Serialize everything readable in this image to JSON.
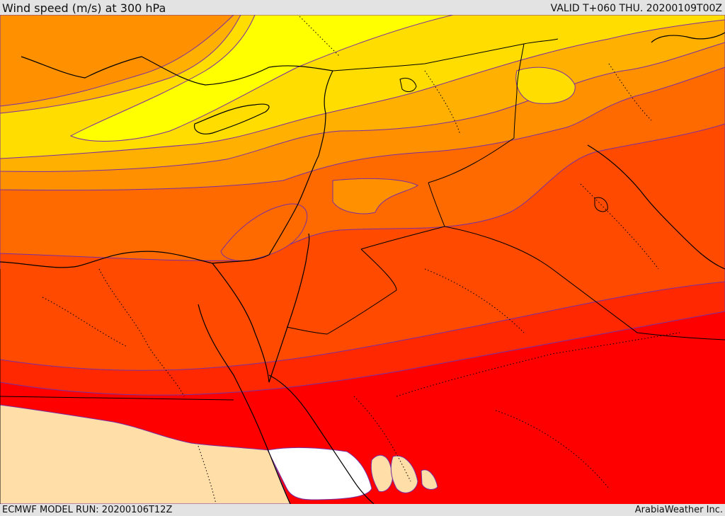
{
  "header": {
    "title": "Wind speed (m/s) at 300 hPa",
    "valid_time": "VALID T+060 THU. 20200109T00Z"
  },
  "footer": {
    "model_run": "ECMWF MODEL RUN: 20200106T12Z",
    "credit": "ArabiaWeather Inc."
  },
  "map": {
    "field": "wind speed at 300 hPa",
    "colors": {
      "slow_yellow": "#ffff00",
      "yellow": "#ffdd00",
      "light_orange": "#ffb000",
      "orange": "#ff9100",
      "deep_orange": "#ff6a00",
      "red_orange": "#ff4a00",
      "orange_red": "#ff2800",
      "red": "#ff0000",
      "jet_core_tan": "#ffdea8",
      "jet_core_white": "#ffffff"
    }
  }
}
